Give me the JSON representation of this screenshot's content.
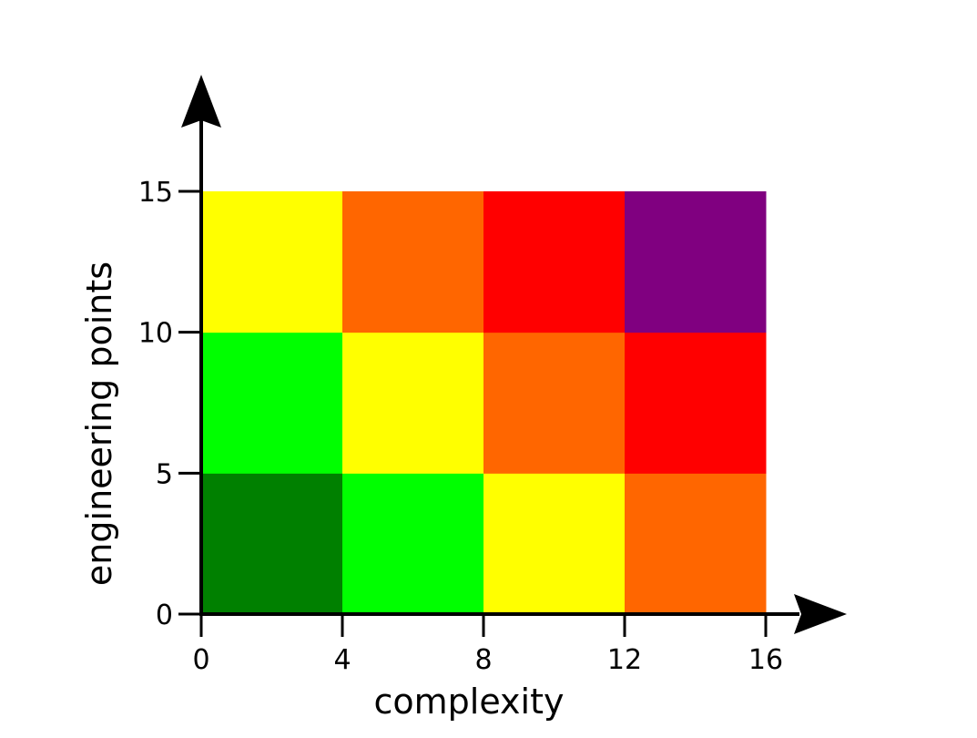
{
  "chart_data": {
    "type": "heatmap",
    "title": "",
    "xlabel": "complexity",
    "ylabel": "engineering points",
    "x_ticks": [
      "0",
      "4",
      "8",
      "12",
      "16"
    ],
    "y_ticks": [
      "0",
      "5",
      "10",
      "15"
    ],
    "x_range": [
      0,
      16
    ],
    "y_range": [
      0,
      15
    ],
    "x_bins": [
      [
        0,
        4
      ],
      [
        4,
        8
      ],
      [
        8,
        12
      ],
      [
        12,
        16
      ]
    ],
    "y_bins": [
      [
        0,
        5
      ],
      [
        5,
        10
      ],
      [
        10,
        15
      ]
    ],
    "cells": [
      [
        "#008000",
        "#00ff00",
        "#ffff00",
        "#ff6600"
      ],
      [
        "#00ff00",
        "#ffff00",
        "#ff6600",
        "#ff0000"
      ],
      [
        "#ffff00",
        "#ff6600",
        "#ff0000",
        "#800080"
      ]
    ],
    "grid": false,
    "legend": "none"
  }
}
